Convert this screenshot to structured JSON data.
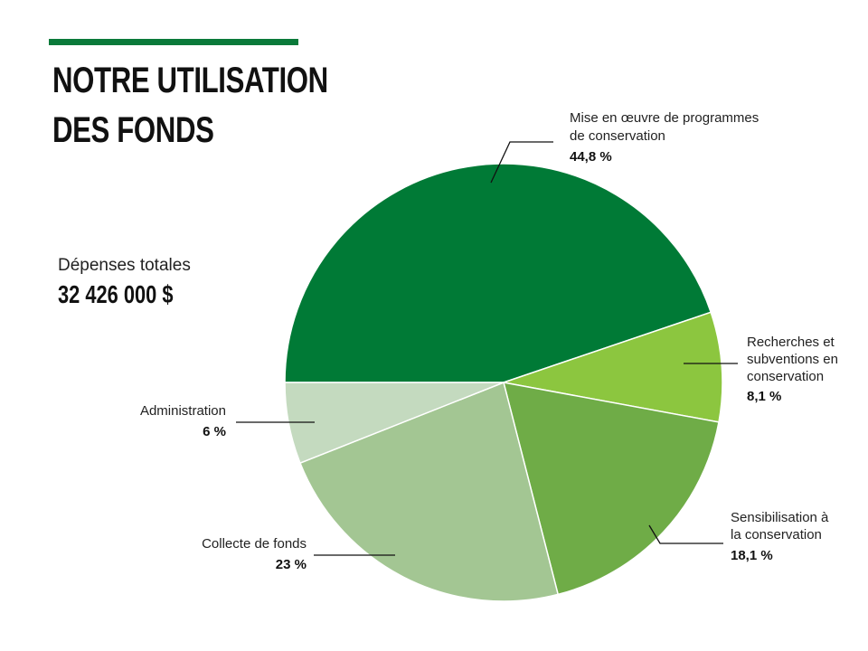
{
  "header": {
    "title_line1": "NOTRE UTILISATION",
    "title_line2": "DES FONDS"
  },
  "summary": {
    "label": "Dépenses totales",
    "value": "32 426 000 $"
  },
  "colors": {
    "accent": "#0a7a3a"
  },
  "chart_data": {
    "type": "pie",
    "slices": [
      {
        "label_lines": [
          "Mise en œuvre de programmes",
          "de conservation"
        ],
        "value": 44.8,
        "display": "44,8 %",
        "color": "#007a36"
      },
      {
        "label_lines": [
          "Recherches et",
          "subventions en",
          "conservation"
        ],
        "value": 8.1,
        "display": "8,1 %",
        "color": "#8cc63f"
      },
      {
        "label_lines": [
          "Sensibilisation à",
          "la conservation"
        ],
        "value": 18.1,
        "display": "18,1 %",
        "color": "#6fac47"
      },
      {
        "label_lines": [
          "Collecte de fonds"
        ],
        "value": 23,
        "display": "23 %",
        "color": "#a3c693"
      },
      {
        "label_lines": [
          "Administration"
        ],
        "value": 6,
        "display": "6 %",
        "color": "#c4dabf"
      }
    ]
  }
}
